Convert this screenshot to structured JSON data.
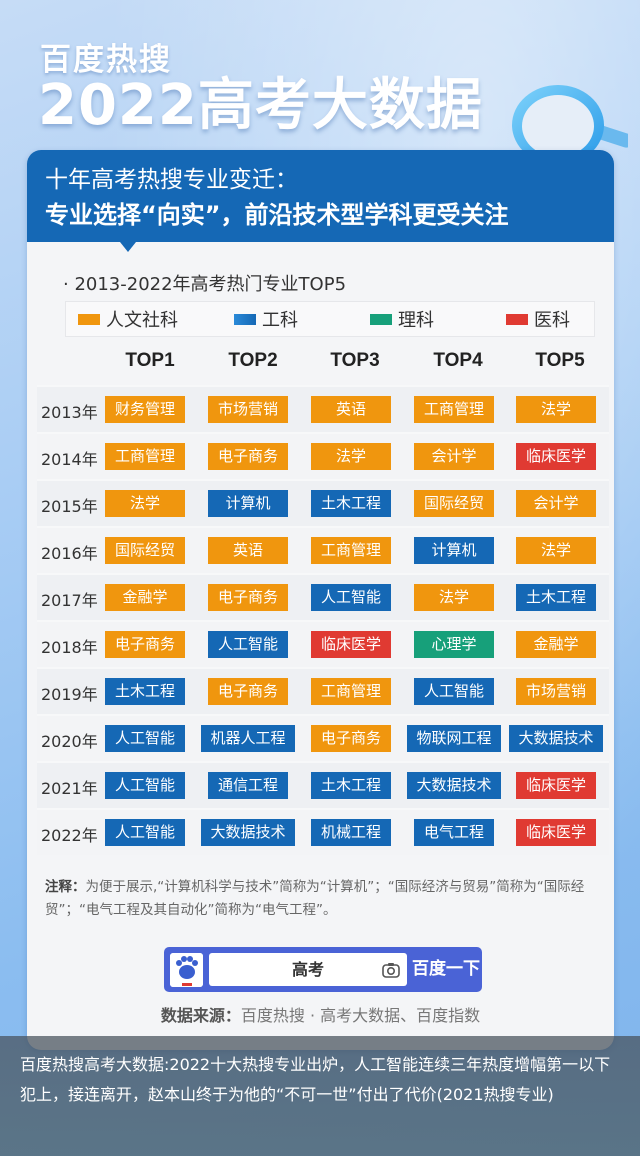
{
  "header": {
    "brand": "百度热搜",
    "headline": "2022高考大数据"
  },
  "card": {
    "title_line1": "十年高考热搜专业变迁：",
    "title_line2": "专业选择“向实”，前沿技术型学科更受关注",
    "subtitle": "· 2013-2022年高考热门专业TOP5"
  },
  "legend": [
    {
      "label": "人文社科",
      "color": "#f0960e"
    },
    {
      "label": "工科",
      "color": "#1568b5"
    },
    {
      "label": "理科",
      "color": "#17a07a"
    },
    {
      "label": "医科",
      "color": "#e03a32"
    }
  ],
  "chart_data": {
    "type": "table",
    "title": "2013-2022年高考热门专业TOP5",
    "columns": [
      "TOP1",
      "TOP2",
      "TOP3",
      "TOP4",
      "TOP5"
    ],
    "category_colors": {
      "人文社科": "#f0960e",
      "工科": "#1568b5",
      "理科": "#17a07a",
      "医科": "#e03a32"
    },
    "rows": [
      {
        "year": "2013年",
        "items": [
          {
            "name": "财务管理",
            "cat": "人文社科"
          },
          {
            "name": "市场营销",
            "cat": "人文社科"
          },
          {
            "name": "英语",
            "cat": "人文社科"
          },
          {
            "name": "工商管理",
            "cat": "人文社科"
          },
          {
            "name": "法学",
            "cat": "人文社科"
          }
        ]
      },
      {
        "year": "2014年",
        "items": [
          {
            "name": "工商管理",
            "cat": "人文社科"
          },
          {
            "name": "电子商务",
            "cat": "人文社科"
          },
          {
            "name": "法学",
            "cat": "人文社科"
          },
          {
            "name": "会计学",
            "cat": "人文社科"
          },
          {
            "name": "临床医学",
            "cat": "医科"
          }
        ]
      },
      {
        "year": "2015年",
        "items": [
          {
            "name": "法学",
            "cat": "人文社科"
          },
          {
            "name": "计算机",
            "cat": "工科"
          },
          {
            "name": "土木工程",
            "cat": "工科"
          },
          {
            "name": "国际经贸",
            "cat": "人文社科"
          },
          {
            "name": "会计学",
            "cat": "人文社科"
          }
        ]
      },
      {
        "year": "2016年",
        "items": [
          {
            "name": "国际经贸",
            "cat": "人文社科"
          },
          {
            "name": "英语",
            "cat": "人文社科"
          },
          {
            "name": "工商管理",
            "cat": "人文社科"
          },
          {
            "name": "计算机",
            "cat": "工科"
          },
          {
            "name": "法学",
            "cat": "人文社科"
          }
        ]
      },
      {
        "year": "2017年",
        "items": [
          {
            "name": "金融学",
            "cat": "人文社科"
          },
          {
            "name": "电子商务",
            "cat": "人文社科"
          },
          {
            "name": "人工智能",
            "cat": "工科"
          },
          {
            "name": "法学",
            "cat": "人文社科"
          },
          {
            "name": "土木工程",
            "cat": "工科"
          }
        ]
      },
      {
        "year": "2018年",
        "items": [
          {
            "name": "电子商务",
            "cat": "人文社科"
          },
          {
            "name": "人工智能",
            "cat": "工科"
          },
          {
            "name": "临床医学",
            "cat": "医科"
          },
          {
            "name": "心理学",
            "cat": "理科"
          },
          {
            "name": "金融学",
            "cat": "人文社科"
          }
        ]
      },
      {
        "year": "2019年",
        "items": [
          {
            "name": "土木工程",
            "cat": "工科"
          },
          {
            "name": "电子商务",
            "cat": "人文社科"
          },
          {
            "name": "工商管理",
            "cat": "人文社科"
          },
          {
            "name": "人工智能",
            "cat": "工科"
          },
          {
            "name": "市场营销",
            "cat": "人文社科"
          }
        ]
      },
      {
        "year": "2020年",
        "items": [
          {
            "name": "人工智能",
            "cat": "工科"
          },
          {
            "name": "机器人工程",
            "cat": "工科"
          },
          {
            "name": "电子商务",
            "cat": "人文社科"
          },
          {
            "name": "物联网工程",
            "cat": "工科"
          },
          {
            "name": "大数据技术",
            "cat": "工科"
          }
        ]
      },
      {
        "year": "2021年",
        "items": [
          {
            "name": "人工智能",
            "cat": "工科"
          },
          {
            "name": "通信工程",
            "cat": "工科"
          },
          {
            "name": "土木工程",
            "cat": "工科"
          },
          {
            "name": "大数据技术",
            "cat": "工科"
          },
          {
            "name": "临床医学",
            "cat": "医科"
          }
        ]
      },
      {
        "year": "2022年",
        "items": [
          {
            "name": "人工智能",
            "cat": "工科"
          },
          {
            "name": "大数据技术",
            "cat": "工科"
          },
          {
            "name": "机械工程",
            "cat": "工科"
          },
          {
            "name": "电气工程",
            "cat": "工科"
          },
          {
            "name": "临床医学",
            "cat": "医科"
          }
        ]
      }
    ]
  },
  "note": {
    "label": "注释：",
    "text": "为便于展示,“计算机科学与技术”简称为“计算机”；“国际经济与贸易”简称为“国际经贸”；“电气工程及其自动化”简称为“电气工程”。"
  },
  "search": {
    "query": "高考",
    "button": "百度一下",
    "logo_icon": "baidu-paw-icon",
    "camera_icon": "camera-icon"
  },
  "source": {
    "label": "数据来源：",
    "text": "百度热搜 · 高考大数据、百度指数"
  },
  "caption": {
    "text": "百度热搜高考大数据:2022十大热搜专业出炉，人工智能连续三年热度增幅第一以下犯上，接连离开，赵本山终于为他的“不可一世”付出了代价(2021热搜专业)"
  }
}
